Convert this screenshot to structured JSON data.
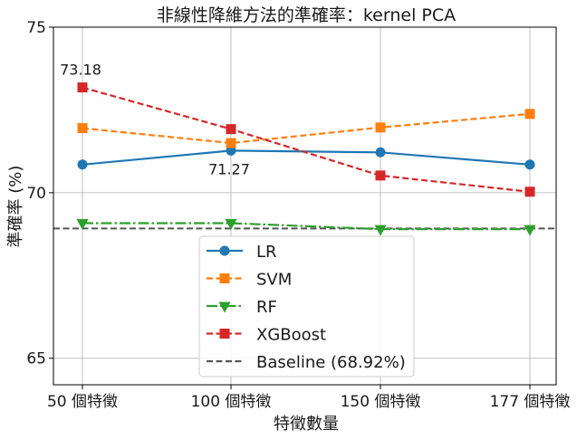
{
  "chart_data": {
    "type": "line",
    "title": "非線性降維方法的準確率：kernel PCA",
    "xlabel": "特徵數量",
    "ylabel": "準確率 (%)",
    "categories": [
      "50 個特徵",
      "100 個特徵",
      "150 個特徵",
      "177 個特徵"
    ],
    "ylim": [
      64.2,
      75.0
    ],
    "yticks": [
      "65",
      "70",
      "75"
    ],
    "grid": true,
    "legend_position": "lower-center",
    "series": [
      {
        "name": "LR",
        "values": [
          70.85,
          71.27,
          71.22,
          70.85
        ],
        "color": "#1f77b4",
        "marker": "circle",
        "linestyle": "solid"
      },
      {
        "name": "SVM",
        "values": [
          71.95,
          71.5,
          71.97,
          72.38
        ],
        "color": "#ff7f0e",
        "marker": "square",
        "linestyle": "dashed"
      },
      {
        "name": "RF",
        "values": [
          69.08,
          69.08,
          68.9,
          68.9
        ],
        "color": "#2ca02c",
        "marker": "triangle-down",
        "linestyle": "dashdot"
      },
      {
        "name": "XGBoost",
        "values": [
          73.18,
          71.92,
          70.52,
          70.03
        ],
        "color": "#d62728",
        "marker": "square",
        "linestyle": "dashed"
      }
    ],
    "baseline": {
      "name": "Baseline (68.92%)",
      "value": 68.92,
      "color": "#555555",
      "linestyle": "dashed"
    },
    "annotations": [
      {
        "text": "73.18",
        "series": "XGBoost",
        "category_index": 0
      },
      {
        "text": "71.27",
        "series": "LR",
        "category_index": 1
      }
    ]
  }
}
